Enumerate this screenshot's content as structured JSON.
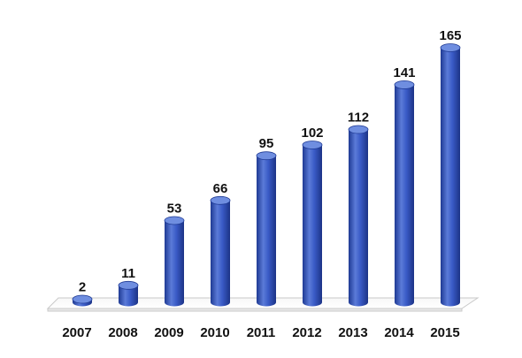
{
  "chart_data": {
    "type": "bar",
    "style": "3d-cylinder",
    "categories": [
      "2007",
      "2008",
      "2009",
      "2010",
      "2011",
      "2012",
      "2013",
      "2014",
      "2015"
    ],
    "values": [
      2,
      11,
      53,
      66,
      95,
      102,
      112,
      141,
      165
    ],
    "data_labels": [
      "2",
      "11",
      "53",
      "66",
      "95",
      "102",
      "112",
      "141",
      "165"
    ],
    "ylim": [
      0,
      165
    ],
    "grid": false,
    "legend": "none",
    "colors": {
      "bar_body": "#3a5bc7",
      "bar_dark": "#1f3a94",
      "bar_light": "#6f8ee0",
      "floor": "#ffffff",
      "floor_edge": "#c9c9c9",
      "text": "#111111"
    }
  }
}
